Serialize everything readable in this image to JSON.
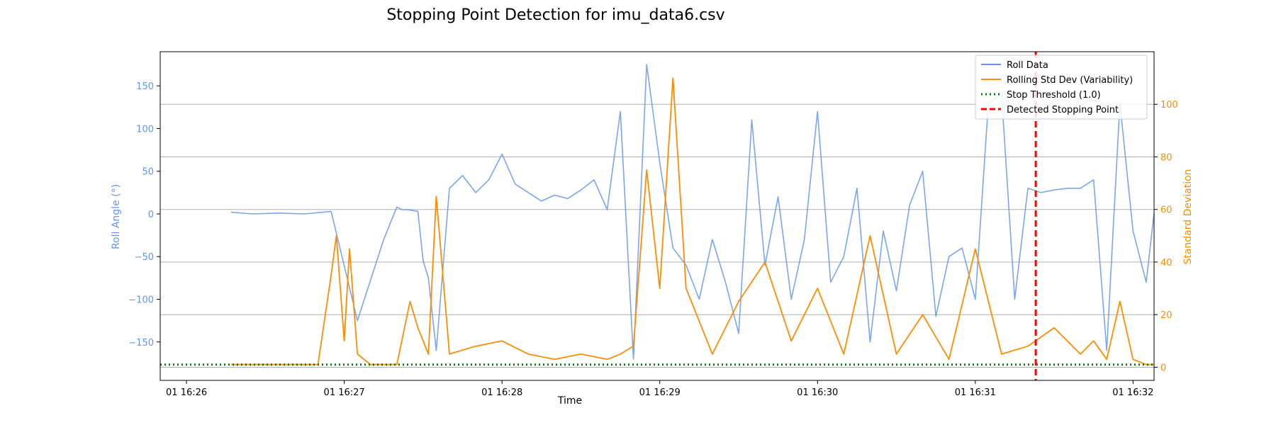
{
  "chart_data": {
    "type": "line",
    "title": "Stopping Point Detection for imu_data6.csv",
    "xlabel": "Time",
    "ylabel_left": "Roll Angle (°)",
    "ylabel_right": "Standard Deviation",
    "x_ticks": [
      "01 16:26",
      "01 16:27",
      "01 16:28",
      "01 16:29",
      "01 16:30",
      "01 16:31",
      "01 16:32"
    ],
    "x_range_seconds_after_1626": [
      -10,
      368
    ],
    "y_left_ticks": [
      -150,
      -100,
      -50,
      0,
      50,
      100,
      150
    ],
    "y_left_range": [
      -195,
      190
    ],
    "y_right_ticks": [
      0,
      20,
      40,
      60,
      80,
      100
    ],
    "y_right_range": [
      -5,
      120
    ],
    "grid": "horizontal (right axis)",
    "legend_position": "top-right",
    "colors": {
      "roll": "#6495ED",
      "std": "#FF8C00",
      "threshold": "#008000",
      "stop": "#FF0000",
      "left_axis_text": "#6495ED",
      "right_axis_text": "#FF8C00"
    },
    "series": [
      {
        "name": "Roll Data",
        "axis": "left",
        "x_seconds": [
          17,
          25,
          35,
          45,
          55,
          65,
          75,
          80,
          82,
          84,
          86,
          88,
          90,
          92,
          95,
          100,
          105,
          110,
          115,
          120,
          125,
          130,
          135,
          140,
          145,
          150,
          155,
          160,
          165,
          170,
          175,
          180,
          185,
          190,
          195,
          200,
          205,
          210,
          215,
          220,
          225,
          230,
          235,
          240,
          245,
          250,
          255,
          260,
          265,
          270,
          275,
          280,
          285,
          290,
          295,
          300,
          305,
          310,
          315,
          320,
          325,
          330,
          335,
          340,
          345,
          350,
          355,
          360,
          365,
          368
        ],
        "values": [
          2,
          0,
          1,
          0,
          3,
          -125,
          -30,
          8,
          5,
          5,
          4,
          3,
          -55,
          -75,
          -160,
          30,
          45,
          25,
          40,
          70,
          35,
          25,
          15,
          22,
          18,
          28,
          40,
          5,
          120,
          -170,
          175,
          60,
          -40,
          -60,
          -100,
          -30,
          -80,
          -140,
          110,
          -60,
          20,
          -100,
          -30,
          120,
          -80,
          -50,
          30,
          -150,
          -20,
          -90,
          10,
          50,
          -120,
          -50,
          -40,
          -100,
          130,
          140,
          -100,
          30,
          25,
          28,
          30,
          30,
          40,
          -160,
          130,
          -20,
          -80,
          1
        ]
      },
      {
        "name": "Rolling Std Dev (Variability)",
        "axis": "right",
        "x_seconds": [
          17,
          30,
          40,
          50,
          55,
          57,
          60,
          62,
          65,
          70,
          80,
          85,
          88,
          92,
          95,
          100,
          110,
          120,
          130,
          140,
          150,
          160,
          165,
          170,
          175,
          180,
          185,
          190,
          200,
          210,
          220,
          230,
          240,
          250,
          260,
          270,
          280,
          290,
          300,
          310,
          320,
          330,
          340,
          345,
          350,
          355,
          360,
          365,
          368
        ],
        "values": [
          1,
          1,
          1,
          1,
          35,
          50,
          10,
          45,
          5,
          1,
          1,
          25,
          15,
          5,
          65,
          5,
          8,
          10,
          5,
          3,
          5,
          3,
          5,
          8,
          75,
          30,
          110,
          30,
          5,
          25,
          40,
          10,
          30,
          5,
          50,
          5,
          20,
          3,
          45,
          5,
          8,
          15,
          5,
          10,
          3,
          25,
          3,
          1,
          1
        ]
      },
      {
        "name": "Stop Threshold (1.0)",
        "axis": "right",
        "constant": 1.0
      },
      {
        "name": "Detected Stopping Point",
        "axis": "vertical",
        "x_seconds": 323
      }
    ]
  },
  "legend": {
    "items": [
      "Roll Data",
      "Rolling Std Dev (Variability)",
      "Stop Threshold (1.0)",
      "Detected Stopping Point"
    ]
  }
}
